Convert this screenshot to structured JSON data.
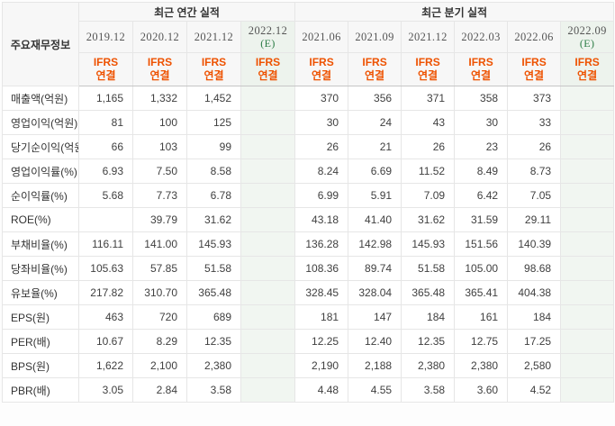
{
  "table": {
    "corner_label": "주요재무정보",
    "sections": [
      {
        "title": "최근 연간 실적",
        "col_span": 4
      },
      {
        "title": "최근 분기 실적",
        "col_span": 6
      }
    ],
    "estimate_suffix": "(E)",
    "columns": [
      {
        "label": "2019.12",
        "section": "annual",
        "estimate": false,
        "standard": [
          "IFRS",
          "연결"
        ]
      },
      {
        "label": "2020.12",
        "section": "annual",
        "estimate": false,
        "standard": [
          "IFRS",
          "연결"
        ]
      },
      {
        "label": "2021.12",
        "section": "annual",
        "estimate": false,
        "standard": [
          "IFRS",
          "연결"
        ]
      },
      {
        "label": "2022.12",
        "section": "annual",
        "estimate": true,
        "standard": [
          "IFRS",
          "연결"
        ]
      },
      {
        "label": "2021.06",
        "section": "quarterly",
        "estimate": false,
        "standard": [
          "IFRS",
          "연결"
        ]
      },
      {
        "label": "2021.09",
        "section": "quarterly",
        "estimate": false,
        "standard": [
          "IFRS",
          "연결"
        ]
      },
      {
        "label": "2021.12",
        "section": "quarterly",
        "estimate": false,
        "standard": [
          "IFRS",
          "연결"
        ]
      },
      {
        "label": "2022.03",
        "section": "quarterly",
        "estimate": false,
        "standard": [
          "IFRS",
          "연결"
        ]
      },
      {
        "label": "2022.06",
        "section": "quarterly",
        "estimate": false,
        "standard": [
          "IFRS",
          "연결"
        ]
      },
      {
        "label": "2022.09",
        "section": "quarterly",
        "estimate": true,
        "standard": [
          "IFRS",
          "연결"
        ]
      }
    ],
    "rows": [
      {
        "label": "매출액(억원)",
        "group_start": false,
        "values": [
          "1,165",
          "1,332",
          "1,452",
          "",
          "370",
          "356",
          "371",
          "358",
          "373",
          ""
        ]
      },
      {
        "label": "영업이익(억원)",
        "group_start": false,
        "values": [
          "81",
          "100",
          "125",
          "",
          "30",
          "24",
          "43",
          "30",
          "33",
          ""
        ]
      },
      {
        "label": "당기순이익(억원)",
        "group_start": false,
        "values": [
          "66",
          "103",
          "99",
          "",
          "26",
          "21",
          "26",
          "23",
          "26",
          ""
        ]
      },
      {
        "label": "영업이익률(%)",
        "group_start": true,
        "values": [
          "6.93",
          "7.50",
          "8.58",
          "",
          "8.24",
          "6.69",
          "11.52",
          "8.49",
          "8.73",
          ""
        ]
      },
      {
        "label": "순이익률(%)",
        "group_start": false,
        "values": [
          "5.68",
          "7.73",
          "6.78",
          "",
          "6.99",
          "5.91",
          "7.09",
          "6.42",
          "7.05",
          ""
        ]
      },
      {
        "label": "ROE(%)",
        "group_start": false,
        "values": [
          "",
          "39.79",
          "31.62",
          "",
          "43.18",
          "41.40",
          "31.62",
          "31.59",
          "29.11",
          ""
        ]
      },
      {
        "label": "부채비율(%)",
        "group_start": true,
        "values": [
          "116.11",
          "141.00",
          "145.93",
          "",
          "136.28",
          "142.98",
          "145.93",
          "151.56",
          "140.39",
          ""
        ]
      },
      {
        "label": "당좌비율(%)",
        "group_start": false,
        "values": [
          "105.63",
          "57.85",
          "51.58",
          "",
          "108.36",
          "89.74",
          "51.58",
          "105.00",
          "98.68",
          ""
        ]
      },
      {
        "label": "유보율(%)",
        "group_start": false,
        "values": [
          "217.82",
          "310.70",
          "365.48",
          "",
          "328.45",
          "328.04",
          "365.48",
          "365.41",
          "404.38",
          ""
        ]
      },
      {
        "label": "EPS(원)",
        "group_start": true,
        "values": [
          "463",
          "720",
          "689",
          "",
          "181",
          "147",
          "184",
          "161",
          "184",
          ""
        ]
      },
      {
        "label": "PER(배)",
        "group_start": false,
        "values": [
          "10.67",
          "8.29",
          "12.35",
          "",
          "12.25",
          "12.40",
          "12.35",
          "12.75",
          "17.25",
          ""
        ]
      },
      {
        "label": "BPS(원)",
        "group_start": false,
        "values": [
          "1,622",
          "2,100",
          "2,380",
          "",
          "2,190",
          "2,188",
          "2,380",
          "2,380",
          "2,580",
          ""
        ]
      },
      {
        "label": "PBR(배)",
        "group_start": false,
        "values": [
          "3.05",
          "2.84",
          "3.58",
          "",
          "4.48",
          "4.55",
          "3.58",
          "3.60",
          "4.52",
          ""
        ]
      }
    ]
  },
  "colors": {
    "accent_orange": "#ee5200",
    "estimate_green_text": "#2d7d46",
    "estimate_bg": "#eef4ee",
    "header_bg": "#f7f7f7",
    "border_light": "#e6e6e6",
    "border_dark": "#c6c6c6"
  }
}
